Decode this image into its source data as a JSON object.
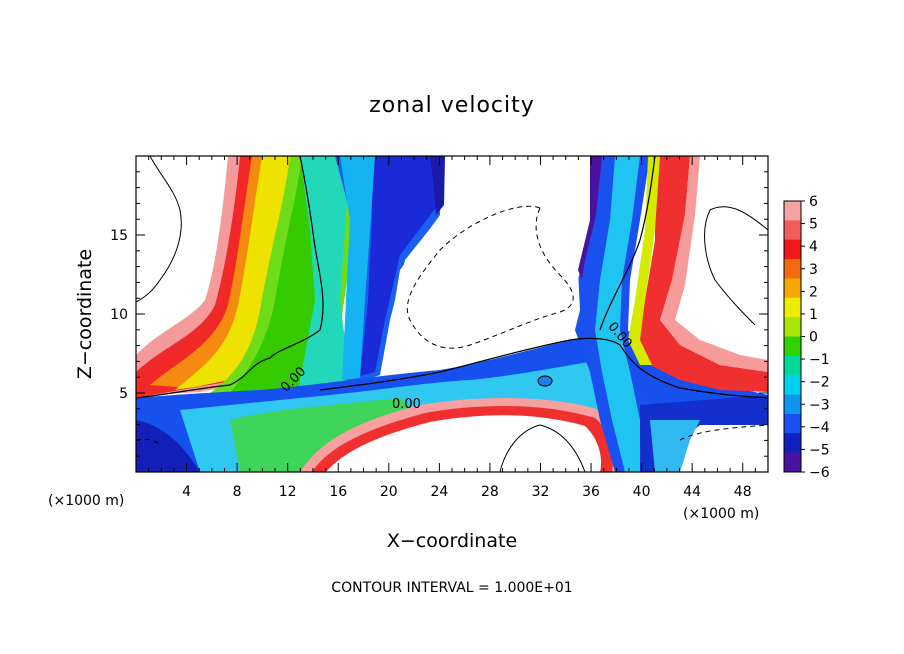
{
  "chart_data": {
    "type": "heatmap",
    "title": "zonal velocity",
    "xlabel": "X−coordinate",
    "ylabel": "Z−coordinate",
    "x_unit_left": "(×1000 m)",
    "x_unit_right": "(×1000 m)",
    "xlim": [
      0,
      50
    ],
    "ylim": [
      0,
      20
    ],
    "xticks": [
      4,
      8,
      12,
      16,
      20,
      24,
      28,
      32,
      36,
      40,
      44,
      48
    ],
    "yticks": [
      5,
      10,
      15
    ],
    "colorbar": {
      "levels": [
        6,
        5,
        4,
        3,
        2,
        1,
        0,
        -1,
        -2,
        -3,
        -4,
        -5,
        -6
      ],
      "labels": [
        "6",
        "5",
        "4",
        "3",
        "2",
        "1",
        "0",
        "−1",
        "−2",
        "−3",
        "−4",
        "−5",
        "−6"
      ],
      "colors": [
        "#f4a3a3",
        "#f45a5a",
        "#f01818",
        "#f36a10",
        "#f7a800",
        "#eded00",
        "#a8e600",
        "#30d200",
        "#00d89a",
        "#00d0f0",
        "#0e96f5",
        "#1a4ff0",
        "#1020c0",
        "#4b12a0"
      ]
    },
    "contour_labels": [
      "0.00",
      "0.00",
      "0.00"
    ],
    "footer": "CONTOUR INTERVAL = 1.000E+01"
  }
}
